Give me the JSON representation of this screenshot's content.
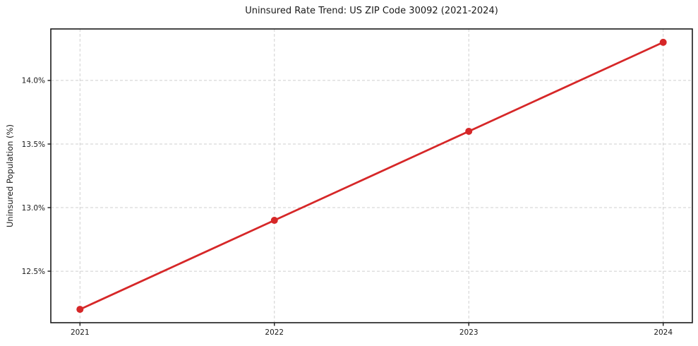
{
  "chart_data": {
    "type": "line",
    "title": "Uninsured Rate Trend: US ZIP Code 30092 (2021-2024)",
    "xlabel": "",
    "ylabel": "Uninsured Population (%)",
    "x": [
      2021,
      2022,
      2023,
      2024
    ],
    "series": [
      {
        "values": [
          12.2,
          12.9,
          13.6,
          14.3
        ],
        "color": "#d62728",
        "marker": "circle"
      }
    ],
    "xticks": [
      2021,
      2022,
      2023,
      2024
    ],
    "xtick_labels": [
      "2021",
      "2022",
      "2023",
      "2024"
    ],
    "yticks": [
      12.5,
      13.0,
      13.5,
      14.0
    ],
    "ytick_labels": [
      "12.5%",
      "13.0%",
      "13.5%",
      "14.0%"
    ],
    "xlim": [
      2020.85,
      2024.15
    ],
    "ylim": [
      12.095,
      14.405
    ],
    "grid": {
      "visible": true,
      "style": "dashed",
      "color": "#cfcfcf"
    },
    "legend": {
      "visible": false
    },
    "axis_color": "#1a1a1a",
    "text_color": "#1a1a1a",
    "background": "#ffffff"
  }
}
